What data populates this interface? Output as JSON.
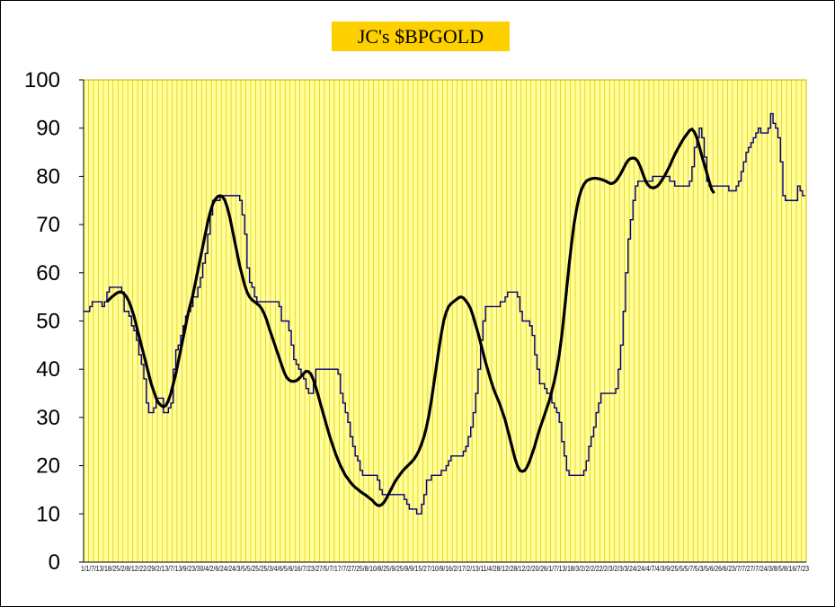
{
  "chart_data": {
    "type": "line",
    "title": "JC's $BPGOLD",
    "xlabel": "",
    "ylabel": "",
    "ylim": [
      0,
      100
    ],
    "yticks": [
      0,
      10,
      20,
      30,
      40,
      50,
      60,
      70,
      80,
      90,
      100
    ],
    "x_tick_labels_text": "1/1/7/13/18/25/2/8/12/22/29/2/13/7/13/9/23/30/4/2/6/24/24/3/5/5/25/25/3/4/6/5/6/16/7/23/27/5/7/17/7/27/25/8/10/8/25/9/25/9/9/15/27/10/9/16/2/17/2/13/11/4/28/12/28/12/2/20/26/1/7/13/18/3/2/2/2/22/2/3/2/3/3/24/24/4/7/4/3/9/25/5/5/7/5/3/5/6/26/6/23/7/7/27/7/24/3/8/5/8/16/7/23",
    "grid": true,
    "background": "#ffff99",
    "grid_color": "#e6c200",
    "series": [
      {
        "color": "#000080",
        "values": [
          52,
          52,
          53,
          54,
          54,
          54,
          54,
          53,
          54,
          56,
          57,
          57,
          57,
          57,
          57,
          56,
          52,
          52,
          51,
          49,
          48,
          46,
          43,
          41,
          38,
          33,
          31,
          31,
          32,
          34,
          34,
          34,
          31,
          31,
          32,
          33,
          40,
          44,
          45,
          47,
          49,
          51,
          52,
          53,
          55,
          55,
          57,
          59,
          62,
          64,
          68,
          72,
          75,
          75,
          75,
          76,
          76,
          76,
          76,
          76,
          76,
          76,
          76,
          75,
          72,
          68,
          61,
          58,
          57,
          55,
          54,
          54,
          54,
          54,
          54,
          54,
          54,
          54,
          54,
          53,
          50,
          50,
          50,
          48,
          45,
          42,
          41,
          40,
          39,
          38,
          36,
          35,
          35,
          37,
          40,
          40,
          40,
          40,
          40,
          40,
          40,
          40,
          40,
          39,
          35,
          33,
          31,
          29,
          26,
          24,
          22,
          21,
          19,
          18,
          18,
          18,
          18,
          18,
          18,
          17,
          15,
          14,
          14,
          14,
          14,
          14,
          14,
          14,
          14,
          14,
          13,
          12,
          11,
          11,
          11,
          10,
          10,
          12,
          14,
          17,
          17,
          18,
          18,
          18,
          18,
          19,
          19,
          20,
          21,
          22,
          22,
          22,
          22,
          22,
          23,
          24,
          26,
          28,
          31,
          35,
          40,
          46,
          50,
          53,
          53,
          53,
          53,
          53,
          53,
          54,
          54,
          55,
          56,
          56,
          56,
          56,
          55,
          52,
          50,
          50,
          50,
          49,
          47,
          43,
          40,
          37,
          37,
          36,
          35,
          35,
          33,
          32,
          31,
          29,
          25,
          22,
          19,
          18,
          18,
          18,
          18,
          18,
          18,
          19,
          21,
          24,
          26,
          28,
          31,
          33,
          35,
          35,
          35,
          35,
          35,
          35,
          36,
          40,
          45,
          52,
          60,
          67,
          71,
          75,
          78,
          79,
          79,
          79,
          79,
          79,
          79,
          80,
          80,
          80,
          80,
          80,
          80,
          80,
          79,
          79,
          78,
          78,
          78,
          78,
          78,
          78,
          79,
          82,
          86,
          88,
          90,
          88,
          84,
          79,
          78,
          78,
          78,
          78,
          78,
          78,
          78,
          78,
          77,
          77,
          77,
          78,
          79,
          81,
          83,
          85,
          86,
          87,
          88,
          89,
          90,
          89,
          89,
          89,
          90,
          93,
          91,
          90,
          88,
          83,
          76,
          75,
          75,
          75,
          75,
          75,
          78,
          77,
          76,
          76
        ]
      },
      {
        "color": "#000000",
        "start_index": 9,
        "values": [
          54,
          54.5,
          55,
          55.4,
          55.8,
          56,
          56,
          55.6,
          55,
          54,
          52.6,
          51,
          49,
          47,
          45,
          43,
          41,
          39,
          37,
          35.5,
          34,
          33,
          32.5,
          32.2,
          32.5,
          33.5,
          35,
          37,
          39,
          41.5,
          44,
          46.5,
          49,
          51.5,
          53.5,
          55.5,
          58,
          60.5,
          63,
          65.5,
          68,
          70.5,
          72.5,
          74.2,
          75.2,
          75.8,
          76,
          75.8,
          75,
          73.5,
          71.5,
          69,
          66.5,
          64,
          61.5,
          59.5,
          57.5,
          56,
          55,
          54.4,
          54,
          53.6,
          53.2,
          52.5,
          51.5,
          50.2,
          48.5,
          47,
          45.5,
          44,
          42.5,
          41,
          39.5,
          38.4,
          37.8,
          37.5,
          37.5,
          37.6,
          38,
          38.5,
          39.1,
          39.6,
          39.5,
          39,
          37.8,
          36.2,
          34.5,
          32.6,
          30.8,
          29,
          27.2,
          25.5,
          24,
          22.5,
          21.2,
          20,
          19,
          18,
          17.3,
          16.6,
          16,
          15.5,
          15.1,
          14.7,
          14.3,
          14,
          13.6,
          13.2,
          12.8,
          12.2,
          11.8,
          11.7,
          12,
          12.6,
          13.5,
          14.5,
          15.5,
          16.5,
          17.3,
          18,
          18.7,
          19.3,
          19.8,
          20.3,
          20.8,
          21.4,
          22.2,
          23.2,
          24.5,
          26,
          28,
          30.5,
          33.5,
          37,
          40.5,
          44,
          47.2,
          50,
          51.8,
          53,
          53.6,
          54,
          54.4,
          54.8,
          55,
          54.8,
          54.2,
          53.5,
          52.5,
          51,
          49.2,
          47.5,
          45.5,
          43.5,
          41.5,
          39.8,
          38,
          36.4,
          35,
          33.8,
          32.5,
          31,
          29.5,
          27.5,
          25.5,
          23.5,
          21.5,
          20,
          19,
          18.8,
          19,
          19.8,
          21,
          22.5,
          24,
          25.8,
          27.5,
          29,
          30.5,
          32,
          33.5,
          35.5,
          37.5,
          40,
          43,
          46.8,
          51.5,
          56.5,
          61.5,
          66,
          70,
          73,
          75.5,
          77.2,
          78.3,
          79,
          79.3,
          79.5,
          79.6,
          79.6,
          79.5,
          79.4,
          79.2,
          79,
          78.7,
          78.5,
          78.6,
          79,
          79.7,
          80.5,
          81.5,
          82.5,
          83.3,
          83.7,
          83.8,
          83.7,
          83.1,
          82,
          80.6,
          79.2,
          78.3,
          77.8,
          77.6,
          77.7,
          78,
          78.6,
          79.4,
          80.2,
          81.2,
          82.2,
          83.4,
          84.5,
          85.5,
          86.4,
          87.3,
          88.1,
          88.8,
          89.5,
          89.8,
          89.2,
          88,
          86.2,
          84.3,
          82.5,
          80.8,
          79,
          77.3,
          76.5
        ]
      }
    ]
  }
}
